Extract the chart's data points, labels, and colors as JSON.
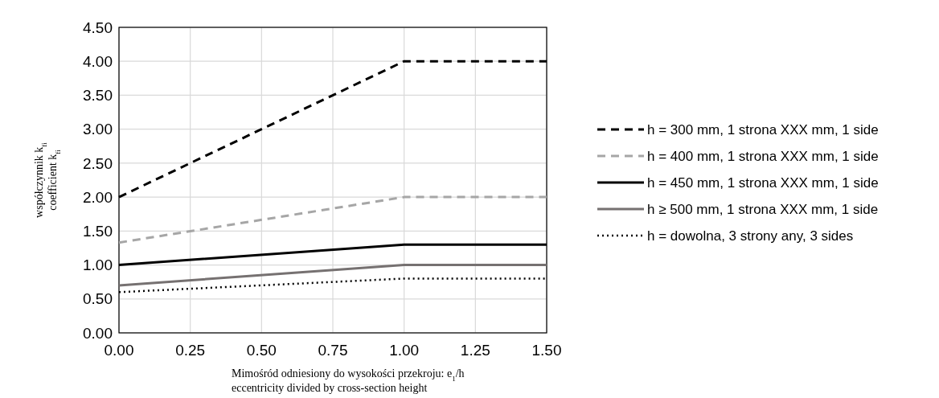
{
  "chart_data": {
    "type": "line",
    "ylabel": "współczynnik k$_{fi}$\ncoefficient k$_{fi}$",
    "xlabel": "Mimośród odniesiony do wysokości przekroju: e$_{1}$/h\neccentricity divided by cross-section height",
    "x": [
      0,
      1,
      1.5
    ],
    "xlim": [
      0,
      1.5
    ],
    "xticks": [
      {
        "value": 0,
        "label": "0.00"
      },
      {
        "value": 0.25,
        "label": "0.25"
      },
      {
        "value": 0.5,
        "label": "0.50"
      },
      {
        "value": 0.75,
        "label": "0.75"
      },
      {
        "value": 1,
        "label": "1.00"
      },
      {
        "value": 1.25,
        "label": "1.25"
      },
      {
        "value": 1.5,
        "label": "1.50"
      }
    ],
    "ylim": [
      0,
      4.5
    ],
    "yticks": [
      {
        "value": 0,
        "label": "0.00"
      },
      {
        "value": 0.5,
        "label": "0.50"
      },
      {
        "value": 1,
        "label": "1.00"
      },
      {
        "value": 1.5,
        "label": "1.50"
      },
      {
        "value": 2,
        "label": "2.00"
      },
      {
        "value": 2.5,
        "label": "2.50"
      },
      {
        "value": 3,
        "label": "3.00"
      },
      {
        "value": 3.5,
        "label": "3.50"
      },
      {
        "value": 4,
        "label": "4.00"
      },
      {
        "value": 4.5,
        "label": "4.50"
      }
    ],
    "grid": true,
    "legend": "right",
    "marker": "none",
    "series": [
      {
        "name": "h = 300 mm, 1 strona XXX mm, 1 side",
        "color": "#000000",
        "line_style": "dashed",
        "values": [
          2,
          4,
          4
        ]
      },
      {
        "name": "h = 400 mm, 1 strona XXX mm, 1 side",
        "color": "#a6a6a6",
        "line_style": "dashed",
        "values": [
          1.33,
          2,
          2
        ]
      },
      {
        "name": "h = 450 mm, 1 strona XXX mm, 1 side",
        "color": "#000000",
        "line_style": "solid",
        "values": [
          1,
          1.3,
          1.3
        ]
      },
      {
        "name": "h ≥ 500 mm, 1 strona XXX mm, 1 side",
        "color": "#767171",
        "line_style": "solid",
        "values": [
          0.7,
          1,
          1
        ]
      },
      {
        "name": "h = dowolna, 3 strony any, 3 sides",
        "color": "#000000",
        "line_style": "dotted",
        "values": [
          0.6,
          0.8,
          0.8
        ]
      }
    ]
  }
}
